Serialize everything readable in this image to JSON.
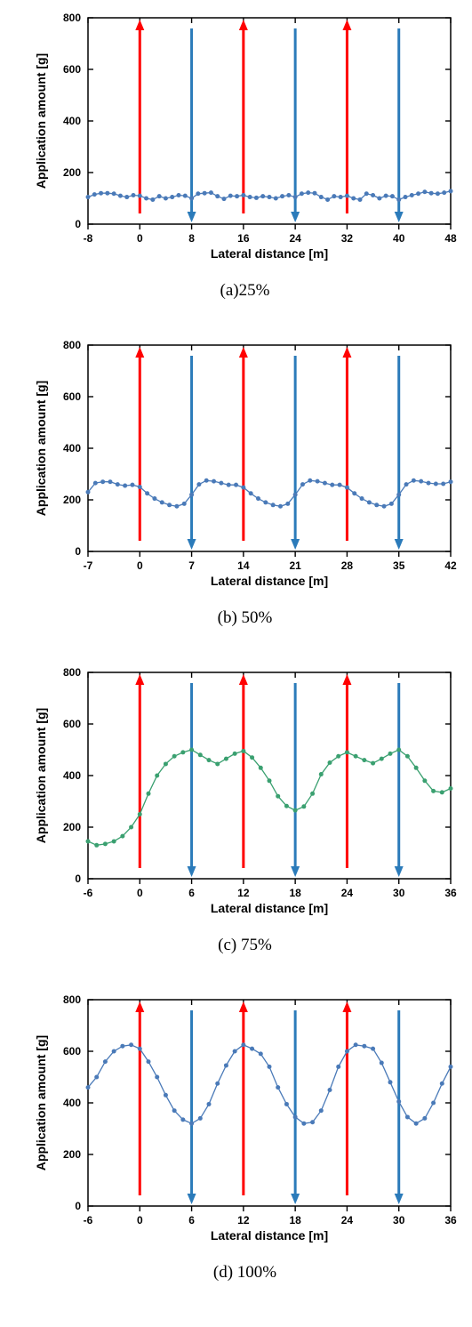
{
  "global": {
    "ylabel": "Application amount [g]",
    "xlabel": "Lateral distance [m]",
    "label_fontsize": 14,
    "label_fontweight": "bold",
    "tick_fontsize": 12,
    "tick_fontweight": "bold",
    "ylim": [
      0,
      800
    ],
    "ytick_step": 200,
    "plot_bg": "#ffffff",
    "border_color": "#000000",
    "arrow_up_color": "#ff0000",
    "arrow_down_color": "#2b7bba",
    "marker_size": 2.5
  },
  "panels": [
    {
      "id": "a",
      "caption": "(a)25%",
      "xlim": [
        -8,
        48
      ],
      "xtick_step": 8,
      "line_color": "#4a7ab8",
      "arrows": [
        {
          "x": 0,
          "dir": "up"
        },
        {
          "x": 8,
          "dir": "down"
        },
        {
          "x": 16,
          "dir": "up"
        },
        {
          "x": 24,
          "dir": "down"
        },
        {
          "x": 32,
          "dir": "up"
        },
        {
          "x": 40,
          "dir": "down"
        }
      ],
      "data_x": [
        -8,
        -7,
        -6,
        -5,
        -4,
        -3,
        -2,
        -1,
        0,
        1,
        2,
        3,
        4,
        5,
        6,
        7,
        8,
        9,
        10,
        11,
        12,
        13,
        14,
        15,
        16,
        17,
        18,
        19,
        20,
        21,
        22,
        23,
        24,
        25,
        26,
        27,
        28,
        29,
        30,
        31,
        32,
        33,
        34,
        35,
        36,
        37,
        38,
        39,
        40,
        41,
        42,
        43,
        44,
        45,
        46,
        47,
        48
      ],
      "data_y": [
        105,
        115,
        120,
        120,
        118,
        110,
        105,
        112,
        110,
        100,
        95,
        108,
        100,
        105,
        112,
        110,
        100,
        118,
        120,
        122,
        108,
        98,
        110,
        108,
        112,
        105,
        102,
        108,
        105,
        100,
        108,
        112,
        105,
        118,
        122,
        120,
        105,
        95,
        108,
        105,
        110,
        100,
        95,
        118,
        112,
        100,
        110,
        108,
        95,
        105,
        112,
        118,
        125,
        120,
        118,
        122,
        128
      ]
    },
    {
      "id": "b",
      "caption": "(b)  50%",
      "xlim": [
        -7,
        42
      ],
      "xtick_step": 7,
      "line_color": "#4a7ab8",
      "arrows": [
        {
          "x": 0,
          "dir": "up"
        },
        {
          "x": 7,
          "dir": "down"
        },
        {
          "x": 14,
          "dir": "up"
        },
        {
          "x": 21,
          "dir": "down"
        },
        {
          "x": 28,
          "dir": "up"
        },
        {
          "x": 35,
          "dir": "down"
        }
      ],
      "data_x": [
        -7,
        -6,
        -5,
        -4,
        -3,
        -2,
        -1,
        0,
        1,
        2,
        3,
        4,
        5,
        6,
        7,
        8,
        9,
        10,
        11,
        12,
        13,
        14,
        15,
        16,
        17,
        18,
        19,
        20,
        21,
        22,
        23,
        24,
        25,
        26,
        27,
        28,
        29,
        30,
        31,
        32,
        33,
        34,
        35,
        36,
        37,
        38,
        39,
        40,
        41,
        42
      ],
      "data_y": [
        230,
        265,
        270,
        270,
        260,
        255,
        258,
        250,
        225,
        205,
        190,
        180,
        175,
        185,
        220,
        260,
        275,
        272,
        265,
        258,
        258,
        248,
        225,
        205,
        190,
        180,
        175,
        185,
        220,
        260,
        275,
        272,
        265,
        258,
        258,
        248,
        225,
        205,
        190,
        180,
        175,
        185,
        220,
        260,
        275,
        272,
        265,
        262,
        262,
        270
      ]
    },
    {
      "id": "c",
      "caption": "(c)  75%",
      "xlim": [
        -6,
        36
      ],
      "xtick_step": 6,
      "line_color": "#3aa070",
      "arrows": [
        {
          "x": 0,
          "dir": "up"
        },
        {
          "x": 6,
          "dir": "down"
        },
        {
          "x": 12,
          "dir": "up"
        },
        {
          "x": 18,
          "dir": "down"
        },
        {
          "x": 24,
          "dir": "up"
        },
        {
          "x": 30,
          "dir": "down"
        }
      ],
      "data_x": [
        -6,
        -5,
        -4,
        -3,
        -2,
        -1,
        0,
        1,
        2,
        3,
        4,
        5,
        6,
        7,
        8,
        9,
        10,
        11,
        12,
        13,
        14,
        15,
        16,
        17,
        18,
        19,
        20,
        21,
        22,
        23,
        24,
        25,
        26,
        27,
        28,
        29,
        30,
        31,
        32,
        33,
        34,
        35,
        36
      ],
      "data_y": [
        145,
        130,
        135,
        145,
        165,
        200,
        250,
        330,
        400,
        445,
        475,
        490,
        500,
        480,
        460,
        445,
        465,
        485,
        495,
        470,
        430,
        380,
        320,
        282,
        265,
        280,
        330,
        405,
        450,
        475,
        490,
        475,
        460,
        448,
        465,
        485,
        500,
        475,
        430,
        380,
        340,
        335,
        350
      ]
    },
    {
      "id": "d",
      "caption": "(d)  100%",
      "xlim": [
        -6,
        36
      ],
      "xtick_step": 6,
      "line_color": "#4a7ab8",
      "arrows": [
        {
          "x": 0,
          "dir": "up"
        },
        {
          "x": 6,
          "dir": "down"
        },
        {
          "x": 12,
          "dir": "up"
        },
        {
          "x": 18,
          "dir": "down"
        },
        {
          "x": 24,
          "dir": "up"
        },
        {
          "x": 30,
          "dir": "down"
        }
      ],
      "data_x": [
        -6,
        -5,
        -4,
        -3,
        -2,
        -1,
        0,
        1,
        2,
        3,
        4,
        5,
        6,
        7,
        8,
        9,
        10,
        11,
        12,
        13,
        14,
        15,
        16,
        17,
        18,
        19,
        20,
        21,
        22,
        23,
        24,
        25,
        26,
        27,
        28,
        29,
        30,
        31,
        32,
        33,
        34,
        35,
        36
      ],
      "data_y": [
        460,
        500,
        560,
        600,
        620,
        625,
        610,
        560,
        500,
        430,
        370,
        335,
        320,
        340,
        395,
        475,
        545,
        600,
        625,
        610,
        590,
        540,
        460,
        395,
        345,
        320,
        325,
        370,
        450,
        540,
        600,
        625,
        620,
        610,
        555,
        480,
        405,
        345,
        320,
        340,
        400,
        475,
        540
      ]
    }
  ]
}
